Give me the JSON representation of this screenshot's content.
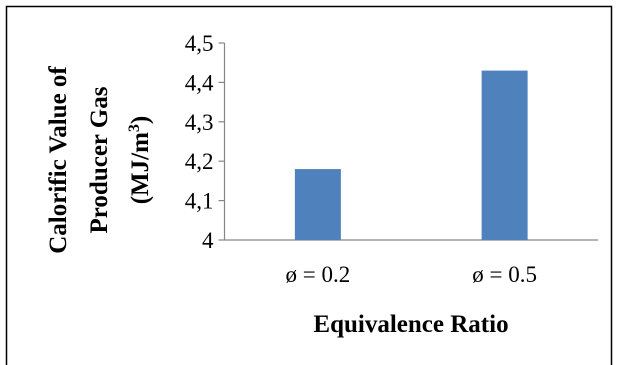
{
  "chart_data": {
    "type": "bar",
    "title": "",
    "xlabel": "Equivalence Ratio",
    "ylabel_lines": [
      "Calorific Value of",
      "Producer Gas",
      "(MJ/m",
      "3",
      ")"
    ],
    "categories": [
      "ø = 0.2",
      "ø = 0.5"
    ],
    "values": [
      4.18,
      4.43
    ],
    "ylim": [
      4,
      4.5
    ],
    "yticks": [
      "4",
      "4,1",
      "4,2",
      "4,3",
      "4,4",
      "4,5"
    ],
    "grid": false,
    "legend": "none",
    "bar_color": "#4f81bd"
  }
}
